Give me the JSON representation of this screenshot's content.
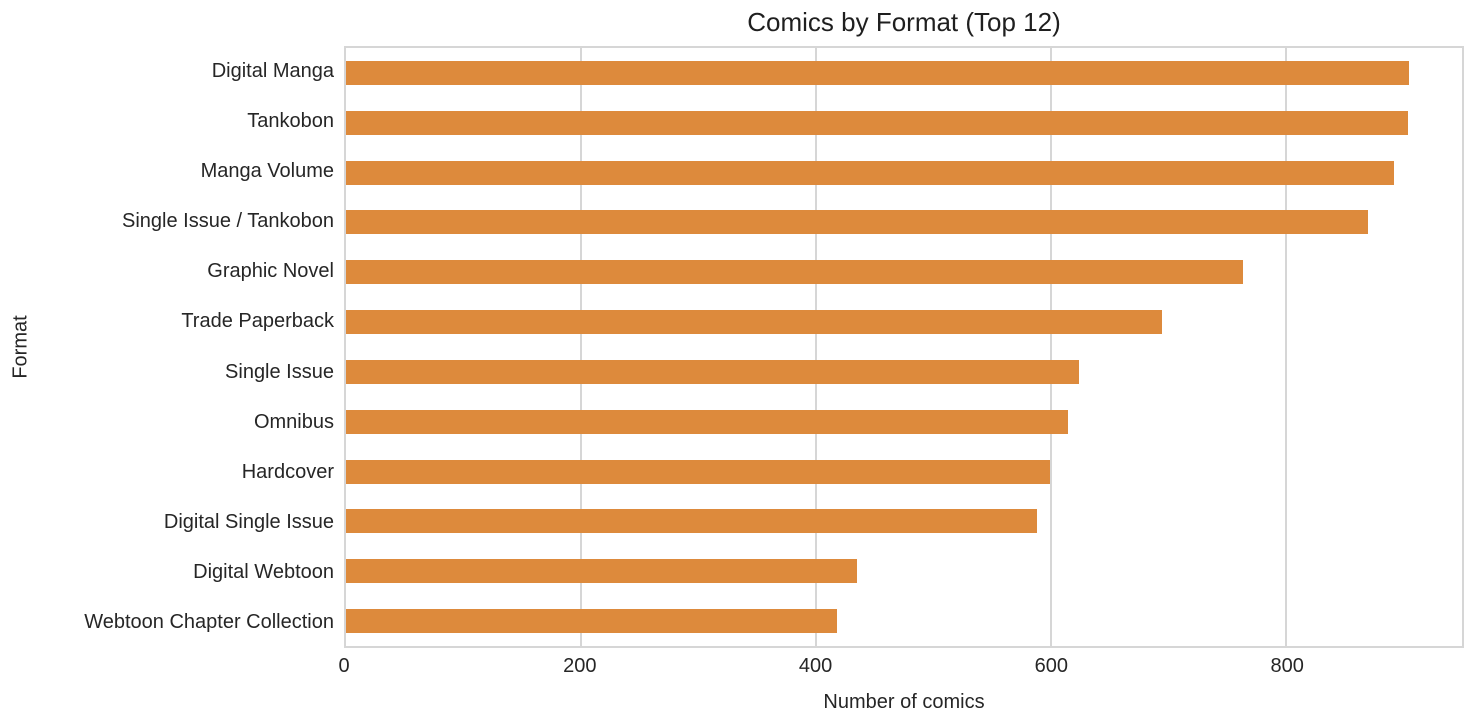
{
  "chart_data": {
    "type": "bar",
    "orientation": "horizontal",
    "title": "Comics by Format (Top 12)",
    "xlabel": "Number of comics",
    "ylabel": "Format",
    "categories": [
      "Digital Manga",
      "Tankobon",
      "Manga Volume",
      "Single Issue / Tankobon",
      "Graphic Novel",
      "Trade Paperback",
      "Single Issue",
      "Omnibus",
      "Hardcover",
      "Digital Single Issue",
      "Digital Webtoon",
      "Webtoon Chapter Collection"
    ],
    "values": [
      905,
      904,
      892,
      870,
      764,
      695,
      624,
      615,
      599,
      588,
      435,
      418
    ],
    "xticks": [
      0,
      200,
      400,
      600,
      800
    ],
    "xlim": [
      0,
      950
    ],
    "grid": true,
    "legend": false,
    "bar_color": "#dd8a3c",
    "grid_color": "#d6d6d6",
    "text_color": "#262626"
  }
}
